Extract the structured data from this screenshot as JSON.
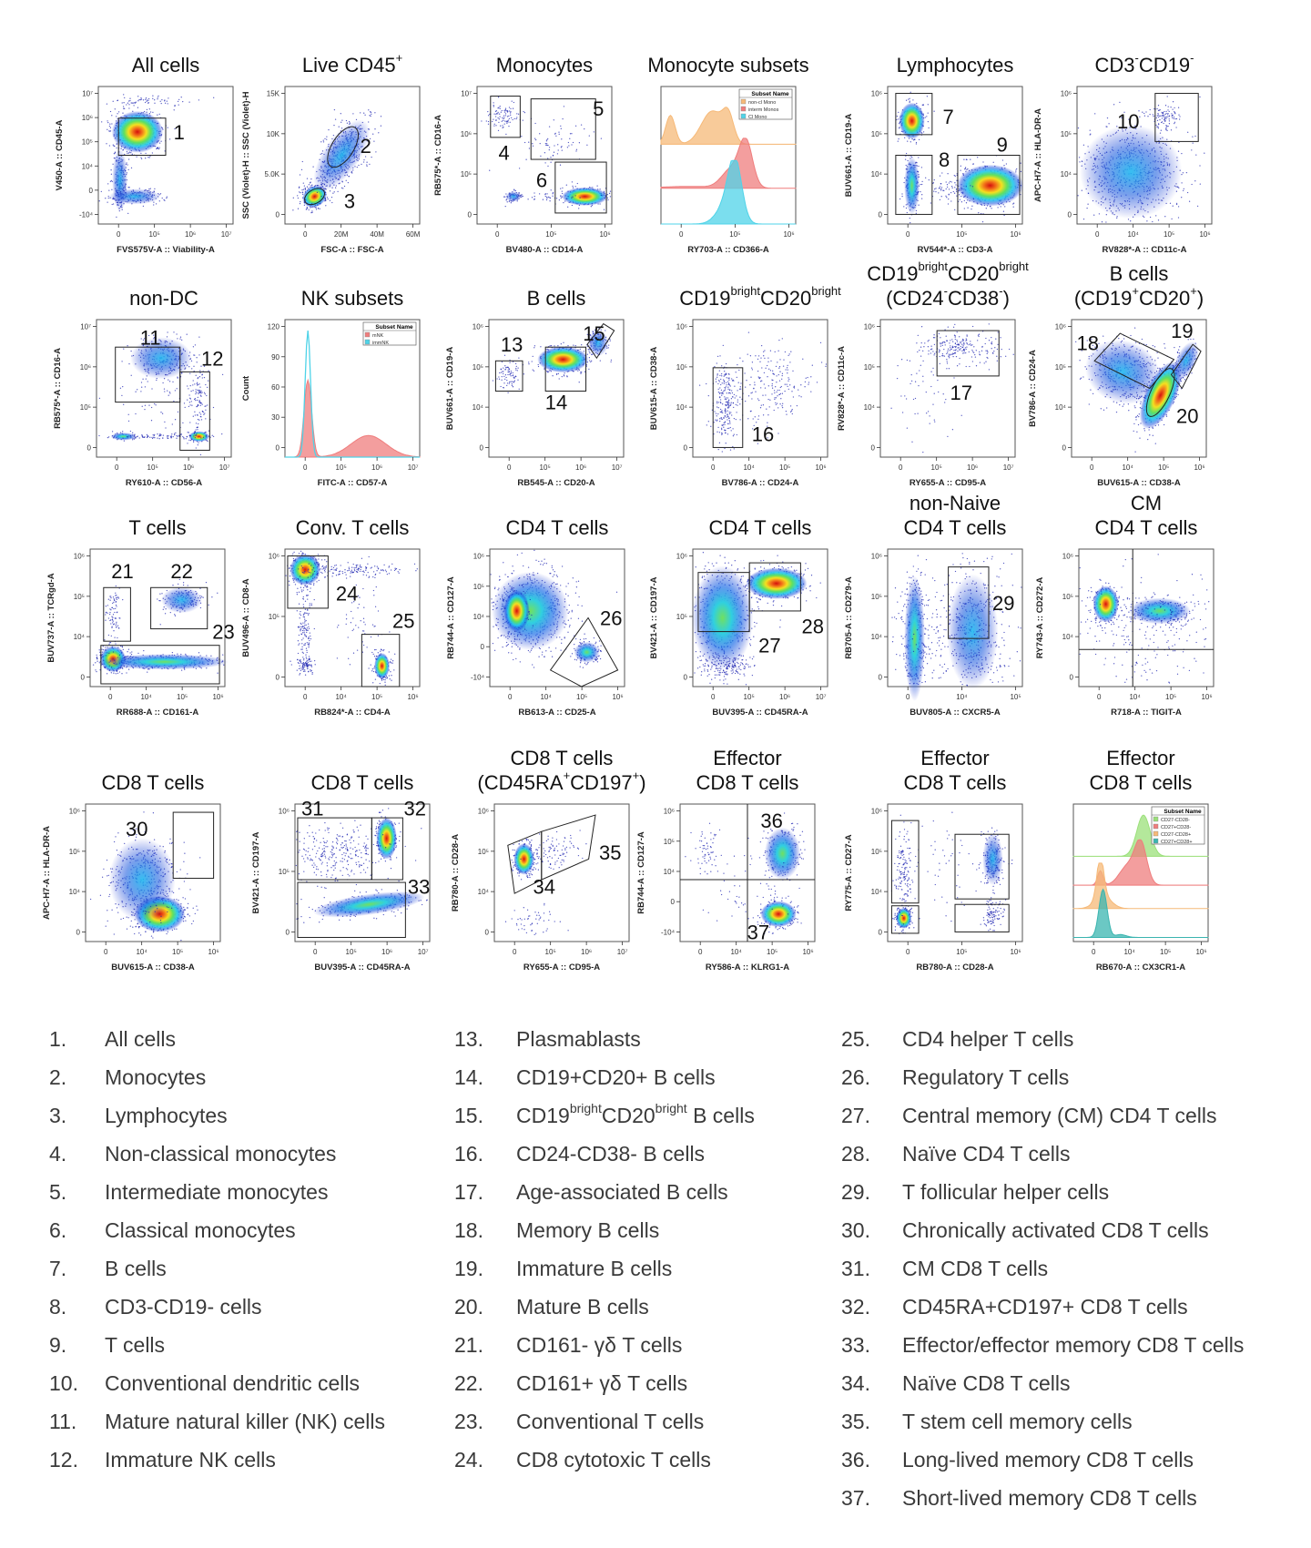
{
  "panels": [
    {
      "title": [
        [
          {
            "t": "All cells"
          }
        ]
      ],
      "x_label": "FVS575V-A :: Viability-A",
      "y_label": "V450-A :: CD45-A",
      "x_ticks": [
        "0",
        "10⁵",
        "10⁶",
        "10⁷"
      ],
      "y_ticks": [
        "10⁷",
        "10⁶",
        "10⁵",
        "10⁴",
        "0",
        "-10⁴"
      ],
      "gate_labels": [
        "1"
      ]
    },
    {
      "title": [
        [
          {
            "t": "Live CD45"
          },
          {
            "t": "+",
            "sup": true
          }
        ]
      ],
      "x_label": "FSC-A :: FSC-A",
      "y_label": "SSC (Violet)-H :: SSC (Violet)-H",
      "x_ticks": [
        "0",
        "20M",
        "40M",
        "60M"
      ],
      "y_ticks": [
        "15K",
        "10K",
        "5.0K",
        "0"
      ],
      "gate_labels": [
        "2",
        "3"
      ]
    },
    {
      "title": [
        [
          {
            "t": "Monocytes"
          }
        ]
      ],
      "x_label": "BV480-A :: CD14-A",
      "y_label": "RB575*-A :: CD16-A",
      "x_ticks": [
        "0",
        "10⁵",
        "10⁶"
      ],
      "y_ticks": [
        "10⁷",
        "10⁶",
        "10⁵",
        "0"
      ],
      "gate_labels": [
        "4",
        "5",
        "6"
      ]
    },
    {
      "title": [
        [
          {
            "t": "Monocyte subsets"
          }
        ]
      ],
      "x_label": "RY703-A :: CD366-A",
      "y_label": "",
      "x_ticks": [
        "0",
        "10⁵",
        "10⁶"
      ],
      "y_ticks": [],
      "gate_labels": [],
      "legend": {
        "header": "Subset Name",
        "items": [
          {
            "label": "non-cl Mono",
            "color": "#f6b978"
          },
          {
            "label": "interm Monos",
            "color": "#ef7d7d"
          },
          {
            "label": "Cl Mono",
            "color": "#4fd3e8"
          }
        ]
      }
    },
    {
      "title": [
        [
          {
            "t": "Lymphocytes"
          }
        ]
      ],
      "x_label": "RV544*-A :: CD3-A",
      "y_label": "BUV661-A :: CD19-A",
      "x_ticks": [
        "0",
        "10⁵",
        "10⁶"
      ],
      "y_ticks": [
        "10⁶",
        "10⁵",
        "10⁴",
        "0"
      ],
      "gate_labels": [
        "7",
        "8",
        "9"
      ]
    },
    {
      "title": [
        [
          {
            "t": "CD3"
          },
          {
            "t": "-",
            "sup": true
          },
          {
            "t": "CD19"
          },
          {
            "t": "-",
            "sup": true
          }
        ]
      ],
      "x_label": "RV828*-A :: CD11c-A",
      "y_label": "APC-H7-A :: HLA-DR-A",
      "x_ticks": [
        "0",
        "10⁴",
        "10⁵",
        "10⁶"
      ],
      "y_ticks": [
        "10⁶",
        "10⁵",
        "10⁴",
        "0"
      ],
      "gate_labels": [
        "10"
      ]
    },
    {
      "title": [
        [
          {
            "t": "non-DC"
          }
        ]
      ],
      "x_label": "RY610-A :: CD56-A",
      "y_label": "RB575*-A :: CD16-A",
      "x_ticks": [
        "0",
        "10⁵",
        "10⁶",
        "10⁷"
      ],
      "y_ticks": [
        "10⁷",
        "10⁶",
        "10⁵",
        "0"
      ],
      "gate_labels": [
        "11",
        "12"
      ]
    },
    {
      "title": [
        [
          {
            "t": "NK subsets"
          }
        ]
      ],
      "x_label": "FITC-A :: CD57-A",
      "y_label": "Count",
      "x_ticks": [
        "0",
        "10⁵",
        "10⁶",
        "10⁷"
      ],
      "y_ticks": [
        "120",
        "90",
        "60",
        "30",
        "0"
      ],
      "gate_labels": [],
      "legend": {
        "header": "Subset Name",
        "items": [
          {
            "label": "mNK",
            "color": "#ef7d7d"
          },
          {
            "label": "immNK",
            "color": "#4fd3e8"
          }
        ]
      }
    },
    {
      "title": [
        [
          {
            "t": "B cells"
          }
        ]
      ],
      "x_label": "RB545-A :: CD20-A",
      "y_label": "BUV661-A :: CD19-A",
      "x_ticks": [
        "0",
        "10⁵",
        "10⁶",
        "10⁷"
      ],
      "y_ticks": [
        "10⁶",
        "10⁵",
        "10⁴",
        "0"
      ],
      "gate_labels": [
        "13",
        "14",
        "15"
      ]
    },
    {
      "title": [
        [
          {
            "t": "CD19"
          },
          {
            "t": "bright",
            "sup": true
          },
          {
            "t": "CD20"
          },
          {
            "t": "bright",
            "sup": true
          }
        ]
      ],
      "x_label": "BV786-A :: CD24-A",
      "y_label": "BUV615-A :: CD38-A",
      "x_ticks": [
        "0",
        "10⁴",
        "10⁵",
        "10⁶"
      ],
      "y_ticks": [
        "10⁶",
        "10⁵",
        "10⁴",
        "0"
      ],
      "gate_labels": [
        "16"
      ]
    },
    {
      "title": [
        [
          {
            "t": "CD19"
          },
          {
            "t": "bright",
            "sup": true
          },
          {
            "t": "CD20"
          },
          {
            "t": "bright",
            "sup": true
          }
        ],
        [
          {
            "t": "(CD24"
          },
          {
            "t": "-",
            "sup": true
          },
          {
            "t": "CD38"
          },
          {
            "t": "-",
            "sup": true
          },
          {
            "t": ")"
          }
        ]
      ],
      "x_label": "RY655-A :: CD95-A",
      "y_label": "RV828*-A :: CD11c-A",
      "x_ticks": [
        "0",
        "10⁵",
        "10⁶",
        "10⁷"
      ],
      "y_ticks": [
        "10⁶",
        "10⁵",
        "10⁴",
        "0"
      ],
      "gate_labels": [
        "17"
      ]
    },
    {
      "title": [
        [
          {
            "t": "B cells"
          }
        ],
        [
          {
            "t": "(CD19"
          },
          {
            "t": "+",
            "sup": true
          },
          {
            "t": "CD20"
          },
          {
            "t": "+",
            "sup": true
          },
          {
            "t": ")"
          }
        ]
      ],
      "x_label": "BUV615-A :: CD38-A",
      "y_label": "BV786-A :: CD24-A",
      "x_ticks": [
        "0",
        "10⁴",
        "10⁵",
        "10⁶"
      ],
      "y_ticks": [
        "10⁶",
        "10⁵",
        "10⁴",
        "0"
      ],
      "gate_labels": [
        "18",
        "19",
        "20"
      ]
    },
    {
      "title": [
        [
          {
            "t": "T cells"
          }
        ]
      ],
      "x_label": "RR688-A :: CD161-A",
      "y_label": "BUV737-A :: TCRgd-A",
      "x_ticks": [
        "0",
        "10⁴",
        "10⁵",
        "10⁶"
      ],
      "y_ticks": [
        "10⁶",
        "10⁵",
        "10⁴",
        "0"
      ],
      "gate_labels": [
        "21",
        "22",
        "23"
      ]
    },
    {
      "title": [
        [
          {
            "t": "Conv. T cells"
          }
        ]
      ],
      "x_label": "RB824*-A :: CD4-A",
      "y_label": "BUV496-A :: CD8-A",
      "x_ticks": [
        "0",
        "10⁴",
        "10⁵",
        "10⁶"
      ],
      "y_ticks": [
        "10⁶",
        "10⁵",
        "0"
      ],
      "gate_labels": [
        "24",
        "25"
      ]
    },
    {
      "title": [
        [
          {
            "t": "CD4 T cells"
          }
        ]
      ],
      "x_label": "RB613-A :: CD25-A",
      "y_label": "RB744-A :: CD127-A",
      "x_ticks": [
        "0",
        "10⁴",
        "10⁵",
        "10⁶"
      ],
      "y_ticks": [
        "10⁶",
        "10⁵",
        "10⁴",
        "0",
        "-10⁴"
      ],
      "gate_labels": [
        "26"
      ]
    },
    {
      "title": [
        [
          {
            "t": "CD4 T cells"
          }
        ]
      ],
      "x_label": "BUV395-A :: CD45RA-A",
      "y_label": "BV421-A :: CD197-A",
      "x_ticks": [
        "0",
        "10⁵",
        "10⁶",
        "10⁷"
      ],
      "y_ticks": [
        "10⁶",
        "10⁵",
        "0"
      ],
      "gate_labels": [
        "27",
        "28"
      ]
    },
    {
      "title": [
        [
          {
            "t": "non-Naive"
          }
        ],
        [
          {
            "t": "CD4 T cells"
          }
        ]
      ],
      "x_label": "BUV805-A :: CXCR5-A",
      "y_label": "RB705-A :: CD279-A",
      "x_ticks": [
        "0",
        "10⁴",
        "10⁵"
      ],
      "y_ticks": [
        "10⁶",
        "10⁵",
        "10⁴",
        "0"
      ],
      "gate_labels": [
        "29"
      ]
    },
    {
      "title": [
        [
          {
            "t": "CM"
          }
        ],
        [
          {
            "t": "CD4 T cells"
          }
        ]
      ],
      "x_label": "R718-A :: TIGIT-A",
      "y_label": "RY743-A :: CD272-A",
      "x_ticks": [
        "0",
        "10⁴",
        "10⁵",
        "10⁶"
      ],
      "y_ticks": [
        "10⁶",
        "10⁵",
        "10⁴",
        "0"
      ],
      "gate_labels": []
    },
    {
      "title": [
        [
          {
            "t": "CD8 T cells"
          }
        ]
      ],
      "x_label": "BUV615-A :: CD38-A",
      "y_label": "APC-H7-A :: HLA-DR-A",
      "x_ticks": [
        "0",
        "10⁴",
        "10⁵",
        "10⁶"
      ],
      "y_ticks": [
        "10⁶",
        "10⁵",
        "10⁴",
        "0"
      ],
      "gate_labels": [
        "30"
      ]
    },
    {
      "title": [
        [
          {
            "t": "CD8 T cells"
          }
        ]
      ],
      "x_label": "BUV395-A :: CD45RA-A",
      "y_label": "BV421-A :: CD197-A",
      "x_ticks": [
        "0",
        "10⁵",
        "10⁶",
        "10⁷"
      ],
      "y_ticks": [
        "10⁶",
        "10⁵",
        "0"
      ],
      "gate_labels": [
        "31",
        "32",
        "33"
      ]
    },
    {
      "title": [
        [
          {
            "t": "CD8 T cells"
          }
        ],
        [
          {
            "t": "(CD45RA"
          },
          {
            "t": "+",
            "sup": true
          },
          {
            "t": "CD197"
          },
          {
            "t": "+",
            "sup": true
          },
          {
            "t": ")"
          }
        ]
      ],
      "x_label": "RY655-A :: CD95-A",
      "y_label": "RB780-A :: CD28-A",
      "x_ticks": [
        "0",
        "10⁵",
        "10⁶",
        "10⁷"
      ],
      "y_ticks": [
        "10⁶",
        "10⁵",
        "10⁴",
        "0"
      ],
      "gate_labels": [
        "34",
        "35"
      ]
    },
    {
      "title": [
        [
          {
            "t": "Effector"
          }
        ],
        [
          {
            "t": "CD8 T cells"
          }
        ]
      ],
      "x_label": "RY586-A :: KLRG1-A",
      "y_label": "RB744-A :: CD127-A",
      "x_ticks": [
        "0",
        "10⁴",
        "10⁵",
        "10⁶"
      ],
      "y_ticks": [
        "10⁶",
        "10⁵",
        "10⁴",
        "0",
        "-10⁴"
      ],
      "gate_labels": [
        "36",
        "37"
      ]
    },
    {
      "title": [
        [
          {
            "t": "Effector"
          }
        ],
        [
          {
            "t": "CD8 T cells"
          }
        ]
      ],
      "x_label": "RB780-A :: CD28-A",
      "y_label": "RY775-A :: CD27-A",
      "x_ticks": [
        "0",
        "10⁵",
        "10⁶"
      ],
      "y_ticks": [
        "10⁶",
        "10⁵",
        "10⁴",
        "0"
      ],
      "gate_labels": []
    },
    {
      "title": [
        [
          {
            "t": "Effector"
          }
        ],
        [
          {
            "t": "CD8 T cells"
          }
        ]
      ],
      "x_label": "RB670-A :: CX3CR1-A",
      "y_label": "",
      "x_ticks": [
        "0",
        "10⁴",
        "10⁵",
        "10⁶"
      ],
      "y_ticks": [],
      "gate_labels": [],
      "legend": {
        "header": "Subset Name",
        "items": [
          {
            "label": "CD27-CD28-",
            "color": "#9be07a"
          },
          {
            "label": "CD27+CD28-",
            "color": "#ef7d7d"
          },
          {
            "label": "CD27-CD28+",
            "color": "#f6b978"
          },
          {
            "label": "CD27+CD28+",
            "color": "#3ab5b0"
          }
        ]
      }
    }
  ],
  "population_list": [
    {
      "num": "1.",
      "label": [
        {
          "t": "All cells"
        }
      ]
    },
    {
      "num": "2.",
      "label": [
        {
          "t": "Monocytes"
        }
      ]
    },
    {
      "num": "3.",
      "label": [
        {
          "t": "Lymphocytes"
        }
      ]
    },
    {
      "num": "4.",
      "label": [
        {
          "t": "Non-classical monocytes"
        }
      ]
    },
    {
      "num": "5.",
      "label": [
        {
          "t": "Intermediate monocytes"
        }
      ]
    },
    {
      "num": "6.",
      "label": [
        {
          "t": "Classical monocytes"
        }
      ]
    },
    {
      "num": "7.",
      "label": [
        {
          "t": "B cells"
        }
      ]
    },
    {
      "num": "8.",
      "label": [
        {
          "t": "CD3-CD19- cells"
        }
      ]
    },
    {
      "num": "9.",
      "label": [
        {
          "t": "T cells"
        }
      ]
    },
    {
      "num": "10.",
      "label": [
        {
          "t": "Conventional dendritic cells"
        }
      ]
    },
    {
      "num": "11.",
      "label": [
        {
          "t": "Mature natural killer (NK) cells"
        }
      ]
    },
    {
      "num": "12.",
      "label": [
        {
          "t": "Immature NK cells"
        }
      ]
    },
    {
      "num": "13.",
      "label": [
        {
          "t": "Plasmablasts"
        }
      ]
    },
    {
      "num": "14.",
      "label": [
        {
          "t": "CD19+CD20+ B cells"
        }
      ]
    },
    {
      "num": "15.",
      "label": [
        {
          "t": "CD19"
        },
        {
          "t": "bright",
          "sup": true
        },
        {
          "t": "CD20"
        },
        {
          "t": "bright",
          "sup": true
        },
        {
          "t": " B cells"
        }
      ]
    },
    {
      "num": "16.",
      "label": [
        {
          "t": "CD24-CD38- B cells"
        }
      ]
    },
    {
      "num": "17.",
      "label": [
        {
          "t": "Age-associated B cells"
        }
      ]
    },
    {
      "num": "18.",
      "label": [
        {
          "t": "Memory B cells"
        }
      ]
    },
    {
      "num": "19.",
      "label": [
        {
          "t": "Immature B cells"
        }
      ]
    },
    {
      "num": "20.",
      "label": [
        {
          "t": "Mature B cells"
        }
      ]
    },
    {
      "num": "21.",
      "label": [
        {
          "t": "CD161- γδ T cells"
        }
      ]
    },
    {
      "num": "22.",
      "label": [
        {
          "t": "CD161+ γδ T cells"
        }
      ]
    },
    {
      "num": "23.",
      "label": [
        {
          "t": "Conventional T cells"
        }
      ]
    },
    {
      "num": "24.",
      "label": [
        {
          "t": "CD8 cytotoxic T cells"
        }
      ]
    },
    {
      "num": "25.",
      "label": [
        {
          "t": "CD4 helper T cells"
        }
      ]
    },
    {
      "num": "26.",
      "label": [
        {
          "t": "Regulatory T cells"
        }
      ]
    },
    {
      "num": "27.",
      "label": [
        {
          "t": "Central memory (CM) CD4 T cells"
        }
      ]
    },
    {
      "num": "28.",
      "label": [
        {
          "t": "Naïve CD4 T cells"
        }
      ]
    },
    {
      "num": "29.",
      "label": [
        {
          "t": "T follicular helper cells"
        }
      ]
    },
    {
      "num": "30.",
      "label": [
        {
          "t": "Chronically activated CD8 T cells"
        }
      ]
    },
    {
      "num": "31.",
      "label": [
        {
          "t": "CM CD8 T cells"
        }
      ]
    },
    {
      "num": "32.",
      "label": [
        {
          "t": "CD45RA+CD197+ CD8 T cells"
        }
      ]
    },
    {
      "num": "33.",
      "label": [
        {
          "t": "Effector/effector memory CD8 T cells"
        }
      ]
    },
    {
      "num": "34.",
      "label": [
        {
          "t": "Naïve CD8 T cells"
        }
      ]
    },
    {
      "num": "35.",
      "label": [
        {
          "t": "T stem cell memory cells"
        }
      ]
    },
    {
      "num": "36.",
      "label": [
        {
          "t": "Long-lived memory CD8 T cells"
        }
      ]
    },
    {
      "num": "37.",
      "label": [
        {
          "t": "Short-lived memory CD8 T cells"
        }
      ]
    }
  ],
  "colors": {
    "dot": "#1b22b0",
    "gate": "#222222",
    "text": "#111111",
    "list_text": "#3a3a3a"
  }
}
